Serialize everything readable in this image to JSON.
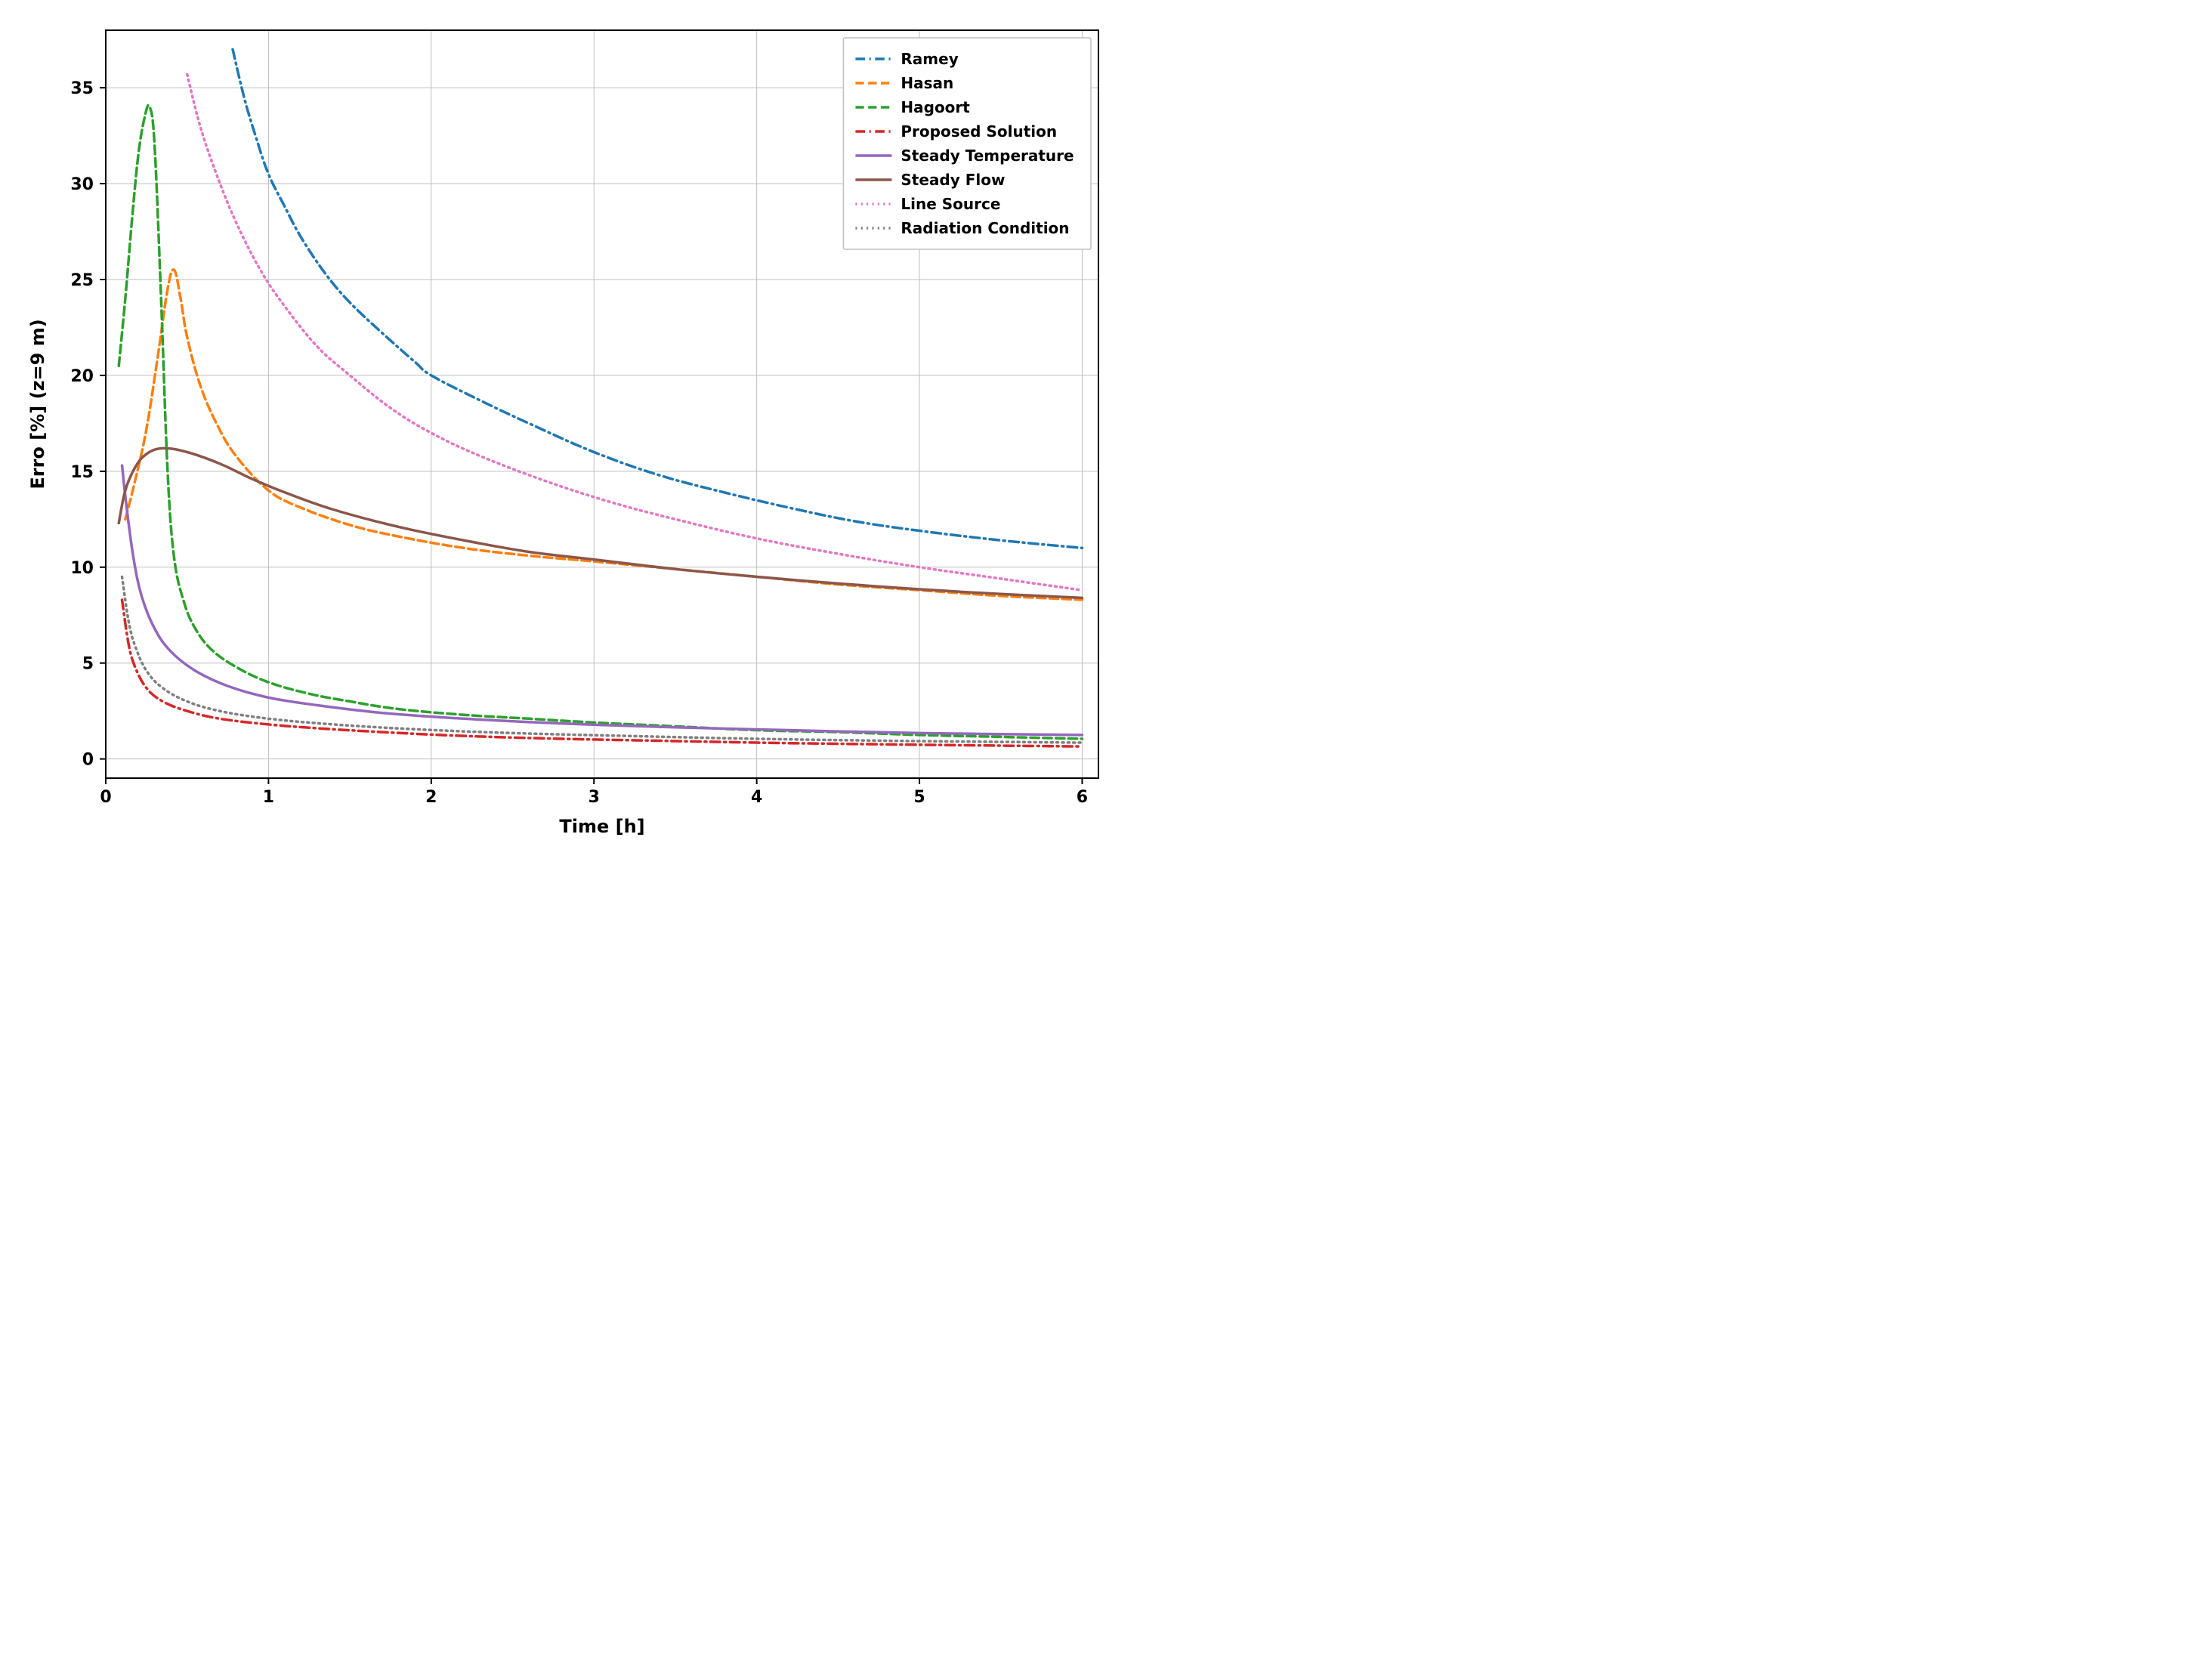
{
  "chart": {
    "type": "line",
    "xlabel": "Time [h]",
    "ylabel": "Erro [%] (z=9 m)",
    "label_fontsize": 24,
    "tick_fontsize": 22,
    "legend_fontsize": 20,
    "xlim": [
      0,
      6.1
    ],
    "ylim": [
      -1,
      38
    ],
    "xticks": [
      0,
      1,
      2,
      3,
      4,
      5,
      6
    ],
    "yticks": [
      0,
      5,
      10,
      15,
      20,
      25,
      30,
      35
    ],
    "background_color": "#ffffff",
    "grid_color": "#bfbfbf",
    "axis_color": "#000000",
    "axis_linewidth": 2,
    "grid_linewidth": 1,
    "series_linewidth": 3.5,
    "legend": {
      "position": "upper-right",
      "border_color": "#bfbfbf",
      "bg_color": "#ffffff"
    },
    "series": [
      {
        "label": "Ramey",
        "color": "#1f77b4",
        "style": "dashdot",
        "data": [
          [
            0.78,
            37.0
          ],
          [
            0.85,
            34.5
          ],
          [
            0.92,
            32.5
          ],
          [
            1.0,
            30.5
          ],
          [
            1.1,
            28.8
          ],
          [
            1.2,
            27.2
          ],
          [
            1.35,
            25.3
          ],
          [
            1.5,
            23.8
          ],
          [
            1.7,
            22.2
          ],
          [
            1.9,
            20.7
          ],
          [
            2.0,
            20.0
          ],
          [
            2.3,
            18.7
          ],
          [
            2.6,
            17.5
          ],
          [
            3.0,
            16.0
          ],
          [
            3.4,
            14.8
          ],
          [
            3.8,
            13.9
          ],
          [
            4.2,
            13.1
          ],
          [
            4.6,
            12.4
          ],
          [
            5.0,
            11.9
          ],
          [
            5.5,
            11.4
          ],
          [
            6.0,
            11.0
          ]
        ]
      },
      {
        "label": "Hasan",
        "color": "#ff7f0e",
        "style": "dash",
        "data": [
          [
            0.12,
            12.5
          ],
          [
            0.18,
            14.5
          ],
          [
            0.25,
            17.2
          ],
          [
            0.32,
            21.0
          ],
          [
            0.38,
            24.5
          ],
          [
            0.42,
            25.5
          ],
          [
            0.46,
            24.0
          ],
          [
            0.5,
            22.0
          ],
          [
            0.58,
            19.5
          ],
          [
            0.68,
            17.5
          ],
          [
            0.8,
            15.8
          ],
          [
            1.0,
            14.0
          ],
          [
            1.2,
            13.1
          ],
          [
            1.5,
            12.2
          ],
          [
            1.8,
            11.6
          ],
          [
            2.2,
            11.0
          ],
          [
            2.6,
            10.6
          ],
          [
            3.0,
            10.3
          ],
          [
            3.5,
            9.9
          ],
          [
            4.0,
            9.5
          ],
          [
            4.5,
            9.1
          ],
          [
            5.0,
            8.8
          ],
          [
            5.5,
            8.5
          ],
          [
            6.0,
            8.3
          ]
        ]
      },
      {
        "label": "Hagoort",
        "color": "#2ca02c",
        "style": "dash",
        "data": [
          [
            0.08,
            20.5
          ],
          [
            0.12,
            24.0
          ],
          [
            0.16,
            28.0
          ],
          [
            0.2,
            31.5
          ],
          [
            0.24,
            33.5
          ],
          [
            0.27,
            34.0
          ],
          [
            0.3,
            32.0
          ],
          [
            0.34,
            24.0
          ],
          [
            0.38,
            15.0
          ],
          [
            0.42,
            10.5
          ],
          [
            0.48,
            8.2
          ],
          [
            0.55,
            6.8
          ],
          [
            0.65,
            5.7
          ],
          [
            0.8,
            4.8
          ],
          [
            1.0,
            4.0
          ],
          [
            1.25,
            3.4
          ],
          [
            1.5,
            3.0
          ],
          [
            1.8,
            2.6
          ],
          [
            2.2,
            2.3
          ],
          [
            2.6,
            2.1
          ],
          [
            3.0,
            1.9
          ],
          [
            3.5,
            1.7
          ],
          [
            4.0,
            1.5
          ],
          [
            4.5,
            1.4
          ],
          [
            5.0,
            1.25
          ],
          [
            5.5,
            1.15
          ],
          [
            6.0,
            1.05
          ]
        ]
      },
      {
        "label": "Proposed Solution",
        "color": "#d62728",
        "style": "dashdot",
        "data": [
          [
            0.1,
            8.3
          ],
          [
            0.14,
            6.0
          ],
          [
            0.18,
            4.8
          ],
          [
            0.25,
            3.7
          ],
          [
            0.35,
            3.0
          ],
          [
            0.5,
            2.5
          ],
          [
            0.7,
            2.1
          ],
          [
            1.0,
            1.8
          ],
          [
            1.3,
            1.6
          ],
          [
            1.7,
            1.4
          ],
          [
            2.2,
            1.2
          ],
          [
            2.8,
            1.05
          ],
          [
            3.4,
            0.95
          ],
          [
            4.0,
            0.85
          ],
          [
            4.6,
            0.78
          ],
          [
            5.2,
            0.72
          ],
          [
            6.0,
            0.65
          ]
        ]
      },
      {
        "label": "Steady Temperature",
        "color": "#9467bd",
        "style": "solid",
        "data": [
          [
            0.1,
            15.3
          ],
          [
            0.13,
            13.0
          ],
          [
            0.17,
            10.5
          ],
          [
            0.22,
            8.5
          ],
          [
            0.3,
            6.8
          ],
          [
            0.4,
            5.6
          ],
          [
            0.55,
            4.6
          ],
          [
            0.75,
            3.8
          ],
          [
            1.0,
            3.2
          ],
          [
            1.3,
            2.8
          ],
          [
            1.7,
            2.4
          ],
          [
            2.2,
            2.1
          ],
          [
            2.8,
            1.85
          ],
          [
            3.5,
            1.65
          ],
          [
            4.2,
            1.5
          ],
          [
            5.0,
            1.35
          ],
          [
            6.0,
            1.25
          ]
        ]
      },
      {
        "label": "Steady Flow",
        "color": "#8c564b",
        "style": "solid",
        "data": [
          [
            0.08,
            12.3
          ],
          [
            0.12,
            14.0
          ],
          [
            0.18,
            15.2
          ],
          [
            0.25,
            15.9
          ],
          [
            0.35,
            16.2
          ],
          [
            0.5,
            16.0
          ],
          [
            0.7,
            15.4
          ],
          [
            0.9,
            14.6
          ],
          [
            1.1,
            13.9
          ],
          [
            1.4,
            13.0
          ],
          [
            1.8,
            12.1
          ],
          [
            2.2,
            11.4
          ],
          [
            2.6,
            10.8
          ],
          [
            3.0,
            10.4
          ],
          [
            3.5,
            9.9
          ],
          [
            4.0,
            9.5
          ],
          [
            4.5,
            9.15
          ],
          [
            5.0,
            8.85
          ],
          [
            5.5,
            8.6
          ],
          [
            6.0,
            8.4
          ]
        ]
      },
      {
        "label": "Line Source",
        "color": "#e377c2",
        "style": "dot",
        "data": [
          [
            0.5,
            35.7
          ],
          [
            0.58,
            33.0
          ],
          [
            0.68,
            30.5
          ],
          [
            0.8,
            28.0
          ],
          [
            0.95,
            25.5
          ],
          [
            1.1,
            23.6
          ],
          [
            1.3,
            21.5
          ],
          [
            1.5,
            20.0
          ],
          [
            1.75,
            18.3
          ],
          [
            2.0,
            17.0
          ],
          [
            2.3,
            15.8
          ],
          [
            2.7,
            14.5
          ],
          [
            3.1,
            13.4
          ],
          [
            3.5,
            12.5
          ],
          [
            4.0,
            11.5
          ],
          [
            4.5,
            10.7
          ],
          [
            5.0,
            10.0
          ],
          [
            5.5,
            9.4
          ],
          [
            6.0,
            8.8
          ]
        ]
      },
      {
        "label": "Radiation Condition",
        "color": "#7f7f7f",
        "style": "dot",
        "data": [
          [
            0.1,
            9.5
          ],
          [
            0.14,
            7.2
          ],
          [
            0.18,
            5.9
          ],
          [
            0.25,
            4.6
          ],
          [
            0.35,
            3.7
          ],
          [
            0.5,
            3.0
          ],
          [
            0.7,
            2.5
          ],
          [
            1.0,
            2.1
          ],
          [
            1.4,
            1.8
          ],
          [
            1.9,
            1.55
          ],
          [
            2.5,
            1.35
          ],
          [
            3.2,
            1.2
          ],
          [
            4.0,
            1.05
          ],
          [
            4.8,
            0.95
          ],
          [
            5.6,
            0.88
          ],
          [
            6.0,
            0.85
          ]
        ]
      }
    ]
  }
}
